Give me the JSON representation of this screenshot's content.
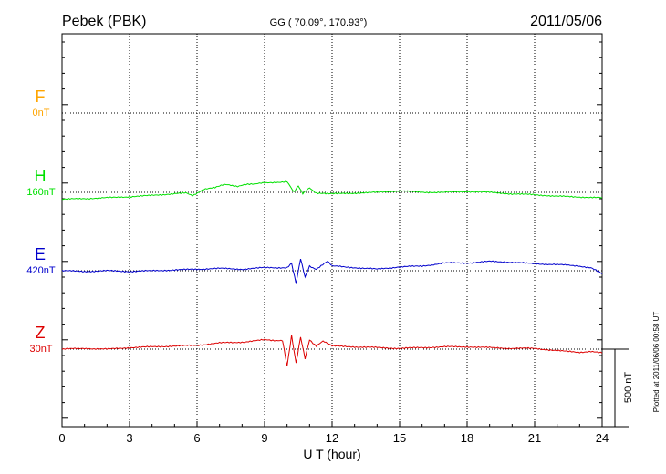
{
  "chart_data": {
    "type": "line",
    "title": "Pebek (PBK)",
    "subtitle": "GG ( 70.09°, 170.93°)",
    "date": "2011/05/06",
    "xlabel": "U T (hour)",
    "xlim": [
      0,
      24
    ],
    "xticks": [
      0,
      3,
      6,
      9,
      12,
      15,
      18,
      21,
      24
    ],
    "grid": true,
    "scale_bar_label": "500 nT",
    "plotted_note": "Plotted at 2011/06/06 00:58 UT",
    "series": [
      {
        "name": "F",
        "offset_label": "0nT",
        "color": "#ffa500",
        "x": [],
        "y": []
      },
      {
        "name": "H",
        "offset_label": "160nT",
        "color": "#00e000",
        "x": [
          0,
          1,
          2,
          3,
          4,
          5,
          5.5,
          5.8,
          6.3,
          6.8,
          7.2,
          7.8,
          8.4,
          9,
          9.5,
          10,
          10.3,
          10.5,
          10.7,
          11,
          11.3,
          12,
          13,
          14,
          15,
          16,
          17,
          18,
          19,
          20,
          21,
          22,
          23,
          24
        ],
        "y": [
          -45,
          -40,
          -35,
          -28,
          -20,
          -8,
          -5,
          -20,
          20,
          30,
          50,
          40,
          55,
          60,
          65,
          70,
          0,
          40,
          -10,
          30,
          -5,
          -10,
          -5,
          0,
          10,
          0,
          0,
          5,
          0,
          -10,
          -15,
          -25,
          -30,
          -35
        ]
      },
      {
        "name": "E",
        "offset_label": "420nT",
        "color": "#0000cc",
        "x": [
          0,
          1,
          2,
          3,
          4,
          5,
          6,
          7,
          8,
          9,
          10,
          10.2,
          10.4,
          10.6,
          10.8,
          11,
          11.3,
          11.8,
          12,
          13,
          14,
          15,
          16,
          17,
          18,
          19,
          20,
          21,
          22,
          23,
          23.5,
          24
        ],
        "y": [
          0,
          -5,
          0,
          -5,
          0,
          5,
          10,
          15,
          10,
          20,
          20,
          50,
          -80,
          80,
          -40,
          30,
          10,
          60,
          30,
          20,
          10,
          25,
          30,
          50,
          50,
          60,
          55,
          45,
          40,
          30,
          20,
          -20
        ],
        "range": [
          -80,
          80
        ]
      },
      {
        "name": "Z",
        "offset_label": "30nT",
        "color": "#dd0000",
        "x": [
          0,
          1,
          2,
          3,
          4,
          5,
          6,
          7,
          8,
          9,
          9.8,
          10,
          10.2,
          10.4,
          10.6,
          10.8,
          11,
          11.3,
          11.6,
          12,
          13,
          14,
          15,
          16,
          17,
          18,
          19,
          20,
          21,
          22,
          23,
          23.5,
          24
        ],
        "y": [
          0,
          5,
          0,
          10,
          15,
          20,
          25,
          40,
          45,
          60,
          55,
          -110,
          90,
          -90,
          80,
          -60,
          60,
          20,
          50,
          20,
          15,
          10,
          5,
          10,
          15,
          15,
          10,
          5,
          5,
          -10,
          -20,
          -15,
          -25
        ]
      }
    ]
  }
}
